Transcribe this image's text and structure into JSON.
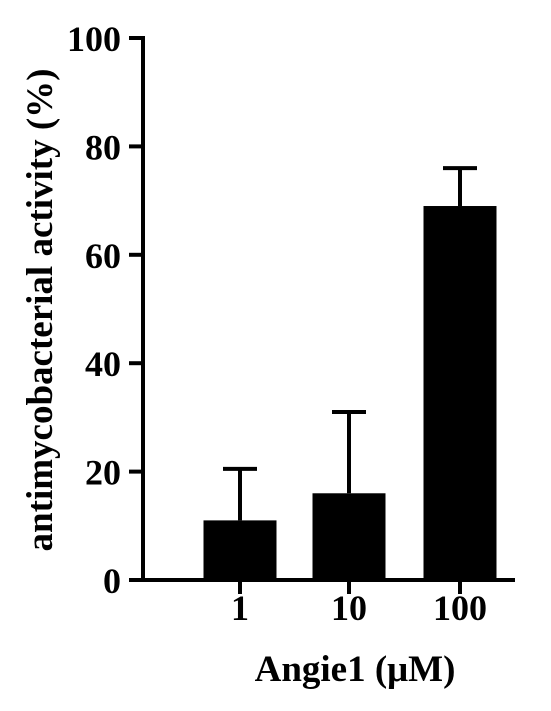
{
  "chart_data": {
    "type": "bar",
    "categories": [
      "1",
      "10",
      "100"
    ],
    "values": [
      11,
      16,
      69
    ],
    "errors": [
      9.5,
      15,
      7
    ],
    "xlabel": "Angie1 (μM)",
    "ylabel": "antimycobacterial activity (%)",
    "ylim": [
      0,
      100
    ],
    "yticks": [
      "0",
      "20",
      "40",
      "60",
      "80",
      "100"
    ],
    "grid": false,
    "bar_color": "#000000"
  }
}
